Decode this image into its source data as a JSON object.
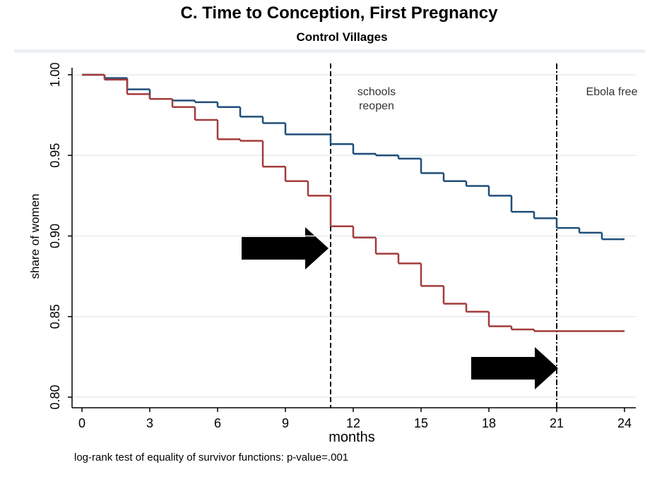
{
  "chart_data": {
    "type": "step",
    "title": "C. Time to Conception, First Pregnancy",
    "subtitle": "Control Villages",
    "xlabel": "months",
    "ylabel": "share of women",
    "note": "log-rank test of equality of survivor functions: p-value=.001",
    "x": [
      0,
      1,
      2,
      3,
      4,
      5,
      6,
      7,
      8,
      9,
      10,
      11,
      12,
      13,
      14,
      15,
      16,
      17,
      18,
      19,
      20,
      21,
      22,
      23,
      24
    ],
    "series": [
      {
        "color": "#1f4e79",
        "values": [
          1.0,
          0.998,
          0.991,
          0.985,
          0.984,
          0.983,
          0.98,
          0.974,
          0.97,
          0.963,
          0.963,
          0.957,
          0.951,
          0.95,
          0.948,
          0.939,
          0.934,
          0.931,
          0.925,
          0.915,
          0.911,
          0.905,
          0.902,
          0.898,
          0.898
        ]
      },
      {
        "color": "#a33b3b",
        "values": [
          1.0,
          0.997,
          0.988,
          0.985,
          0.98,
          0.972,
          0.96,
          0.959,
          0.943,
          0.934,
          0.925,
          0.906,
          0.899,
          0.889,
          0.883,
          0.869,
          0.858,
          0.853,
          0.844,
          0.842,
          0.841,
          0.841,
          0.841,
          0.841,
          0.841
        ]
      }
    ],
    "annotations": [
      {
        "x": 11,
        "text": [
          "schools",
          "reopen"
        ]
      },
      {
        "x": 21,
        "text": [
          "Ebola free"
        ]
      }
    ],
    "xlim": [
      0,
      24
    ],
    "xticks": [
      0,
      3,
      6,
      9,
      12,
      15,
      18,
      21,
      24
    ],
    "ylim": [
      0.8,
      1.0
    ],
    "yticks": [
      {
        "value": 0.8,
        "label": "0.80"
      },
      0.85,
      {
        "value": 0.9,
        "label": "0.90"
      },
      0.95,
      {
        "value": 1.0,
        "label": "1.00"
      }
    ],
    "grid": true
  }
}
